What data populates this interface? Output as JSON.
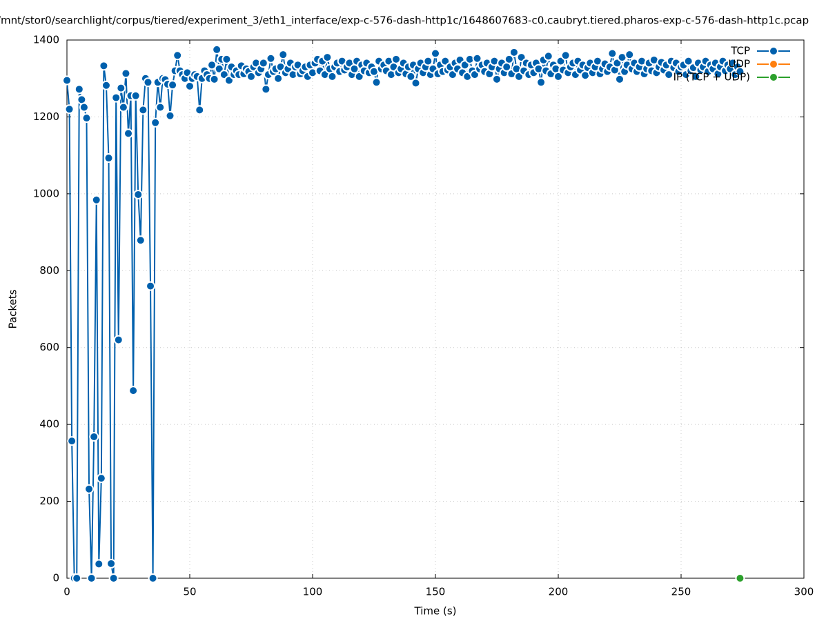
{
  "chart_data": {
    "type": "line",
    "title": "/mnt/stor0/searchlight/corpus/tiered/experiment_3/eth1_interface/exp-c-576-dash-http1c/1648607683-c0.caubryt.tiered.pharos-exp-c-576-dash-http1c.pcap",
    "x_label": "Time (s)",
    "y_label": "Packets",
    "xlim": [
      0,
      300
    ],
    "xticks": [
      0,
      50,
      100,
      150,
      200,
      250,
      300
    ],
    "ylim": [
      0,
      1400
    ],
    "yticks": [
      0,
      200,
      400,
      600,
      800,
      1000,
      1200,
      1400
    ],
    "grid": true,
    "legend": "top-right",
    "series": [
      {
        "name": "TCP",
        "color": "#0060ad",
        "x": [
          0,
          1,
          2,
          3,
          4,
          5,
          6,
          7,
          8,
          9,
          10,
          11,
          12,
          13,
          14,
          15,
          16,
          17,
          18,
          19,
          20,
          21,
          22,
          23,
          24,
          25,
          26,
          27,
          28,
          29,
          30,
          31,
          32,
          33,
          34,
          35,
          36,
          37,
          38,
          39,
          40,
          41,
          42,
          43,
          44,
          45,
          46,
          47,
          48,
          49,
          50,
          51,
          52,
          53,
          54,
          55,
          56,
          57,
          58,
          59,
          60,
          61,
          62,
          63,
          64,
          65,
          66,
          67,
          68,
          69,
          70,
          71,
          72,
          73,
          74,
          75,
          76,
          77,
          78,
          79,
          80,
          81,
          82,
          83,
          84,
          85,
          86,
          87,
          88,
          89,
          90,
          91,
          92,
          93,
          94,
          95,
          96,
          97,
          98,
          99,
          100,
          101,
          102,
          103,
          104,
          105,
          106,
          107,
          108,
          109,
          110,
          111,
          112,
          113,
          114,
          115,
          116,
          117,
          118,
          119,
          120,
          121,
          122,
          123,
          124,
          125,
          126,
          127,
          128,
          129,
          130,
          131,
          132,
          133,
          134,
          135,
          136,
          137,
          138,
          139,
          140,
          141,
          142,
          143,
          144,
          145,
          146,
          147,
          148,
          149,
          150,
          151,
          152,
          153,
          154,
          155,
          156,
          157,
          158,
          159,
          160,
          161,
          162,
          163,
          164,
          165,
          166,
          167,
          168,
          169,
          170,
          171,
          172,
          173,
          174,
          175,
          176,
          177,
          178,
          179,
          180,
          181,
          182,
          183,
          184,
          185,
          186,
          187,
          188,
          189,
          190,
          191,
          192,
          193,
          194,
          195,
          196,
          197,
          198,
          199,
          200,
          201,
          202,
          203,
          204,
          205,
          206,
          207,
          208,
          209,
          210,
          211,
          212,
          213,
          214,
          215,
          216,
          217,
          218,
          219,
          220,
          221,
          222,
          223,
          224,
          225,
          226,
          227,
          228,
          229,
          230,
          231,
          232,
          233,
          234,
          235,
          236,
          237,
          238,
          239,
          240,
          241,
          242,
          243,
          244,
          245,
          246,
          247,
          248,
          249,
          250,
          251,
          252,
          253,
          254,
          255,
          256,
          257,
          258,
          259,
          260,
          261,
          262,
          263,
          264,
          265,
          266,
          267,
          268,
          269,
          270,
          271,
          272,
          273,
          274
        ],
        "values": [
          1295,
          1220,
          357,
          0,
          0,
          1272,
          1245,
          1225,
          1197,
          232,
          0,
          368,
          984,
          37,
          260,
          1333,
          1282,
          1093,
          38,
          0,
          1250,
          620,
          1275,
          1225,
          1313,
          1157,
          1255,
          488,
          1255,
          998,
          879,
          1218,
          1300,
          1290,
          760,
          0,
          1185,
          1290,
          1225,
          1300,
          1297,
          1285,
          1203,
          1283,
          1320,
          1360,
          1320,
          1310,
          1300,
          1315,
          1280,
          1300,
          1310,
          1305,
          1218,
          1300,
          1320,
          1310,
          1300,
          1335,
          1298,
          1375,
          1325,
          1350,
          1310,
          1350,
          1295,
          1330,
          1310,
          1320,
          1310,
          1333,
          1312,
          1325,
          1318,
          1305,
          1330,
          1340,
          1315,
          1325,
          1340,
          1272,
          1310,
          1352,
          1318,
          1325,
          1300,
          1330,
          1362,
          1315,
          1325,
          1340,
          1310,
          1330,
          1335,
          1312,
          1320,
          1330,
          1305,
          1335,
          1315,
          1340,
          1350,
          1320,
          1345,
          1310,
          1355,
          1325,
          1305,
          1330,
          1340,
          1318,
          1345,
          1322,
          1330,
          1340,
          1310,
          1325,
          1345,
          1305,
          1335,
          1320,
          1340,
          1315,
          1330,
          1318,
          1290,
          1345,
          1325,
          1335,
          1320,
          1345,
          1310,
          1330,
          1350,
          1315,
          1325,
          1340,
          1312,
          1330,
          1305,
          1335,
          1288,
          1325,
          1340,
          1315,
          1330,
          1345,
          1310,
          1325,
          1365,
          1312,
          1335,
          1318,
          1345,
          1322,
          1330,
          1310,
          1340,
          1325,
          1348,
          1315,
          1335,
          1305,
          1350,
          1320,
          1310,
          1352,
          1325,
          1335,
          1318,
          1340,
          1312,
          1330,
          1345,
          1298,
          1325,
          1340,
          1315,
          1330,
          1350,
          1312,
          1368,
          1325,
          1305,
          1355,
          1320,
          1340,
          1310,
          1335,
          1315,
          1340,
          1325,
          1290,
          1348,
          1320,
          1358,
          1312,
          1335,
          1325,
          1305,
          1345,
          1322,
          1360,
          1315,
          1330,
          1340,
          1310,
          1345,
          1322,
          1335,
          1308,
          1328,
          1340,
          1315,
          1330,
          1345,
          1312,
          1325,
          1338,
          1318,
          1330,
          1365,
          1322,
          1340,
          1298,
          1355,
          1318,
          1335,
          1362,
          1325,
          1340,
          1318,
          1330,
          1345,
          1312,
          1325,
          1340,
          1320,
          1348,
          1315,
          1330,
          1342,
          1322,
          1335,
          1310,
          1345,
          1328,
          1340,
          1318,
          1330,
          1335,
          1310,
          1345,
          1320,
          1328,
          1305,
          1340,
          1322,
          1330,
          1345,
          1318,
          1335,
          1325,
          1340,
          1312,
          1330,
          1345,
          1320,
          1335,
          1325,
          1340,
          1310,
          1330,
          1318
        ]
      },
      {
        "name": "UDP",
        "color": "#ff7f0e",
        "x": [
          274
        ],
        "values": [
          0
        ]
      },
      {
        "name": "IP (TCP + UDP)",
        "color": "#2ca02c",
        "x": [
          274
        ],
        "values": [
          0
        ]
      }
    ]
  }
}
